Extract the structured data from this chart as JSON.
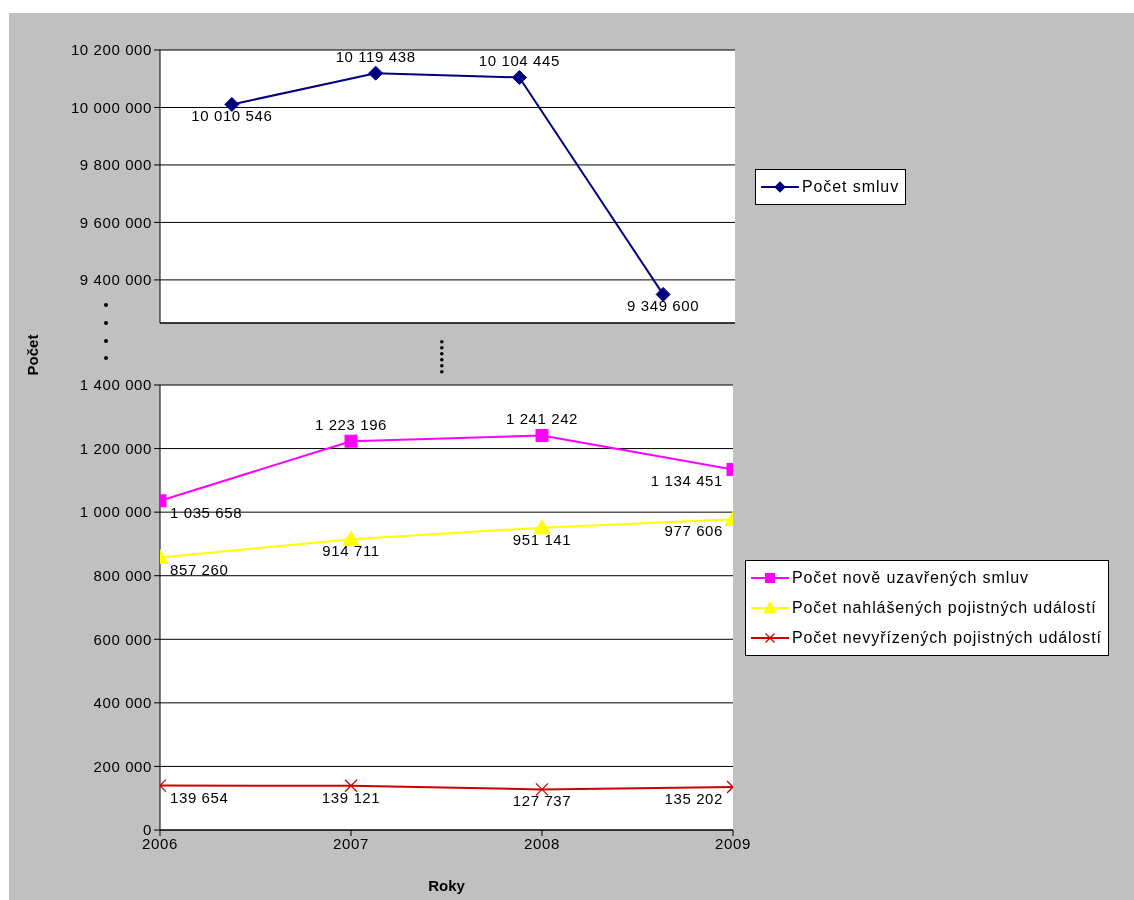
{
  "chart_data": [
    {
      "type": "line",
      "categories": [
        null,
        null,
        null,
        null
      ],
      "series": [
        {
          "name": "Počet smluv",
          "color": "#000080",
          "marker": "diamond",
          "values": [
            10010546,
            10119438,
            10104445,
            9349600
          ],
          "value_labels": [
            "10 010 546",
            "10 119 438",
            "10 104 445",
            "9 349 600"
          ]
        }
      ],
      "ylim": [
        9250000,
        10200000
      ],
      "yticks": [
        {
          "value": 9400000,
          "label": "9 400 000"
        },
        {
          "value": 9600000,
          "label": "9 600 000"
        },
        {
          "value": 9800000,
          "label": "9 800 000"
        },
        {
          "value": 10000000,
          "label": "10 000 000"
        },
        {
          "value": 10200000,
          "label": "10 200 000"
        }
      ],
      "grid": "y",
      "legend": "right",
      "tick_labels": "y"
    },
    {
      "type": "line",
      "x": [
        2006,
        2007,
        2008,
        2009
      ],
      "xlabel": "Roky",
      "ylabel": "Počet",
      "series": [
        {
          "name": "Počet nově uzavřených smluv",
          "color": "#ff00ff",
          "marker": "square",
          "values": [
            1035658,
            1223196,
            1241242,
            1134451
          ],
          "value_labels": [
            "1 035 658",
            "1 223 196",
            "1 241 242",
            "1 134 451"
          ]
        },
        {
          "name": "Počet nahlášených pojistných událostí",
          "color": "#ffff00",
          "marker": "triangle",
          "values": [
            857260,
            914711,
            951141,
            977606
          ],
          "value_labels": [
            "857 260",
            "914 711",
            "951 141",
            "977 606"
          ]
        },
        {
          "name": "Počet nevyřízených pojistných událostí",
          "color": "#cc0000",
          "marker": "cross",
          "values": [
            139654,
            139121,
            127737,
            135202
          ],
          "value_labels": [
            "139 654",
            "139 121",
            "127 737",
            "135 202"
          ]
        }
      ],
      "xlim": [
        2006,
        2009
      ],
      "xticks": [
        2006,
        2007,
        2008,
        2009
      ],
      "ylim": [
        0,
        1400000
      ],
      "yticks": [
        0,
        {
          "value": 200000,
          "label": "200 000"
        },
        {
          "value": 400000,
          "label": "400 000"
        },
        {
          "value": 600000,
          "label": "600 000"
        },
        {
          "value": 800000,
          "label": "800 000"
        },
        {
          "value": 1000000,
          "label": "1 000 000"
        },
        {
          "value": 1200000,
          "label": "1 200 000"
        },
        {
          "value": 1400000,
          "label": "1 400 000"
        }
      ],
      "grid": "y",
      "legend": "right"
    }
  ]
}
